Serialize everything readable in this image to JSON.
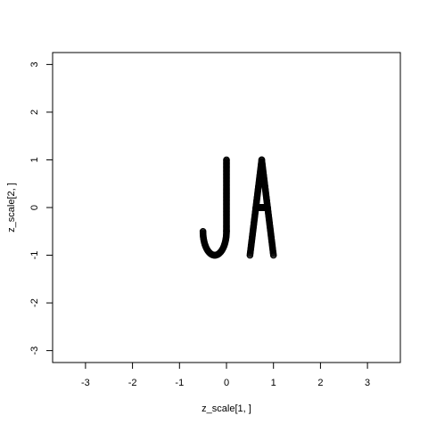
{
  "chart_data": {
    "type": "scatter",
    "title": "",
    "xlabel": "z_scale[1, ]",
    "ylabel": "z_scale[2, ]",
    "xlim": [
      -3.7,
      3.7
    ],
    "ylim": [
      -3.25,
      3.25
    ],
    "xticks": [
      -3,
      -2,
      -1,
      0,
      1,
      2,
      3
    ],
    "yticks": [
      -3,
      -2,
      -1,
      0,
      1,
      2,
      3
    ],
    "grid": false,
    "legend": "none",
    "point_color": "#000000",
    "shapes": [
      {
        "letter_stroke": "J-stem",
        "x": [
          0,
          0
        ],
        "y": [
          1,
          -0.5
        ]
      },
      {
        "letter_stroke": "J-hook",
        "center": [
          -0.25,
          -0.5
        ],
        "radius_x": 0.25,
        "radius_y": 0.5,
        "from_deg": 180,
        "to_deg": 360
      },
      {
        "letter_stroke": "A-left",
        "x": [
          0.5,
          0.75
        ],
        "y": [
          -1,
          1
        ]
      },
      {
        "letter_stroke": "A-right",
        "x": [
          0.75,
          1
        ],
        "y": [
          1,
          -1
        ]
      },
      {
        "letter_stroke": "A-crossbar",
        "x": [
          0.625,
          0.875
        ],
        "y": [
          0,
          0
        ]
      }
    ]
  }
}
